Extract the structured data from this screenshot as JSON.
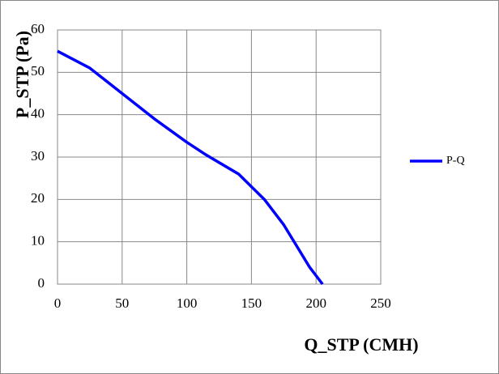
{
  "chart_data": {
    "type": "line",
    "x_label": "Q_STP (CMH)",
    "y_label": "P_STP (Pa)",
    "xlim": [
      0,
      250
    ],
    "xticks": [
      0,
      50,
      100,
      150,
      200,
      250
    ],
    "ylim": [
      0,
      60
    ],
    "yticks": [
      0,
      10,
      20,
      30,
      40,
      50,
      60
    ],
    "grid": true,
    "legend": "right",
    "series": [
      {
        "name": "P-Q",
        "color": "#0000ff",
        "x": [
          0,
          25,
          50,
          75,
          100,
          115,
          140,
          160,
          175,
          185,
          195,
          205
        ],
        "values": [
          55,
          51,
          45,
          39,
          33.5,
          30.5,
          26,
          20,
          14,
          9,
          4,
          0
        ]
      }
    ]
  }
}
